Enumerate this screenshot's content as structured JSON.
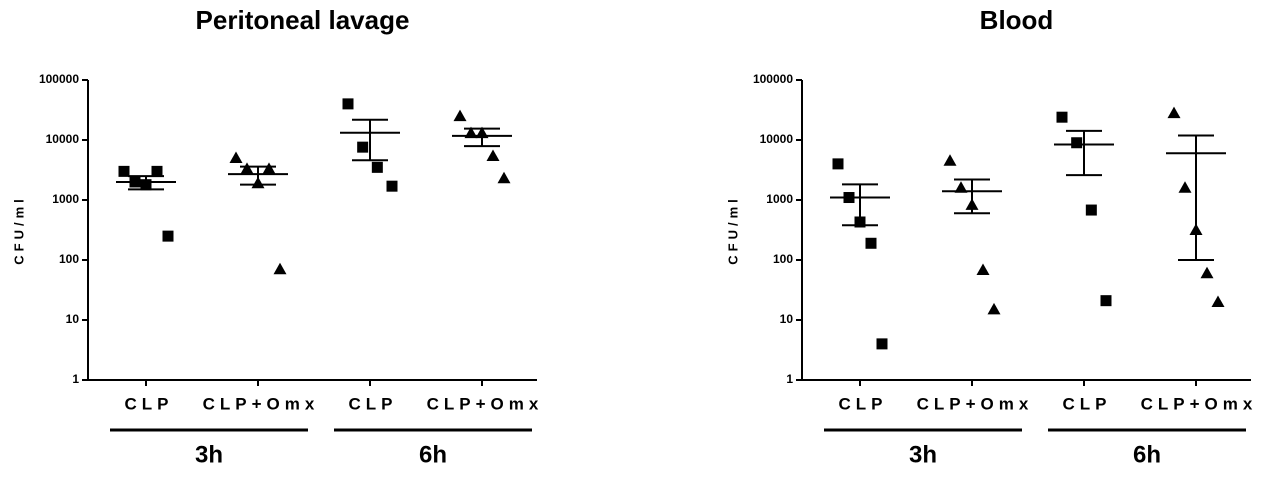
{
  "chart_data": [
    {
      "type": "dotplot",
      "title": "Peritoneal lavage",
      "ylabel": "CFU/ml",
      "log_scale": true,
      "ylim": [
        1,
        100000
      ],
      "yticks": [
        1,
        10,
        100,
        1000,
        10000,
        100000
      ],
      "categories": [
        "CLP",
        "CLP+Omx",
        "CLP",
        "CLP+Omx"
      ],
      "group_labels": [
        "3h",
        "6h"
      ],
      "markers": [
        "square",
        "triangle",
        "square",
        "triangle"
      ],
      "color": "#000000",
      "points": [
        [
          3000,
          2000,
          1800,
          3000,
          250
        ],
        [
          5000,
          3300,
          1900,
          3300,
          70
        ],
        [
          40000,
          7600,
          3500,
          1700
        ],
        [
          25000,
          13000,
          13000,
          5400,
          2300
        ]
      ],
      "means": [
        2000,
        2700,
        13200,
        11700
      ],
      "sems": [
        500,
        900,
        8600,
        3800
      ]
    },
    {
      "type": "dotplot",
      "title": "Blood",
      "ylabel": "CFU/ml",
      "log_scale": true,
      "ylim": [
        1,
        100000
      ],
      "yticks": [
        1,
        10,
        100,
        1000,
        10000,
        100000
      ],
      "categories": [
        "CLP",
        "CLP+Omx",
        "CLP",
        "CLP+Omx"
      ],
      "group_labels": [
        "3h",
        "6h"
      ],
      "markers": [
        "square",
        "triangle",
        "square",
        "triangle"
      ],
      "color": "#000000",
      "points": [
        [
          4000,
          1100,
          430,
          190,
          4
        ],
        [
          4500,
          1600,
          830,
          68,
          15
        ],
        [
          24000,
          9000,
          680,
          21
        ],
        [
          28000,
          1600,
          316,
          60,
          20
        ]
      ],
      "means": [
        1100,
        1400,
        8400,
        6000
      ],
      "sems": [
        720,
        800,
        5800,
        5900
      ]
    }
  ]
}
